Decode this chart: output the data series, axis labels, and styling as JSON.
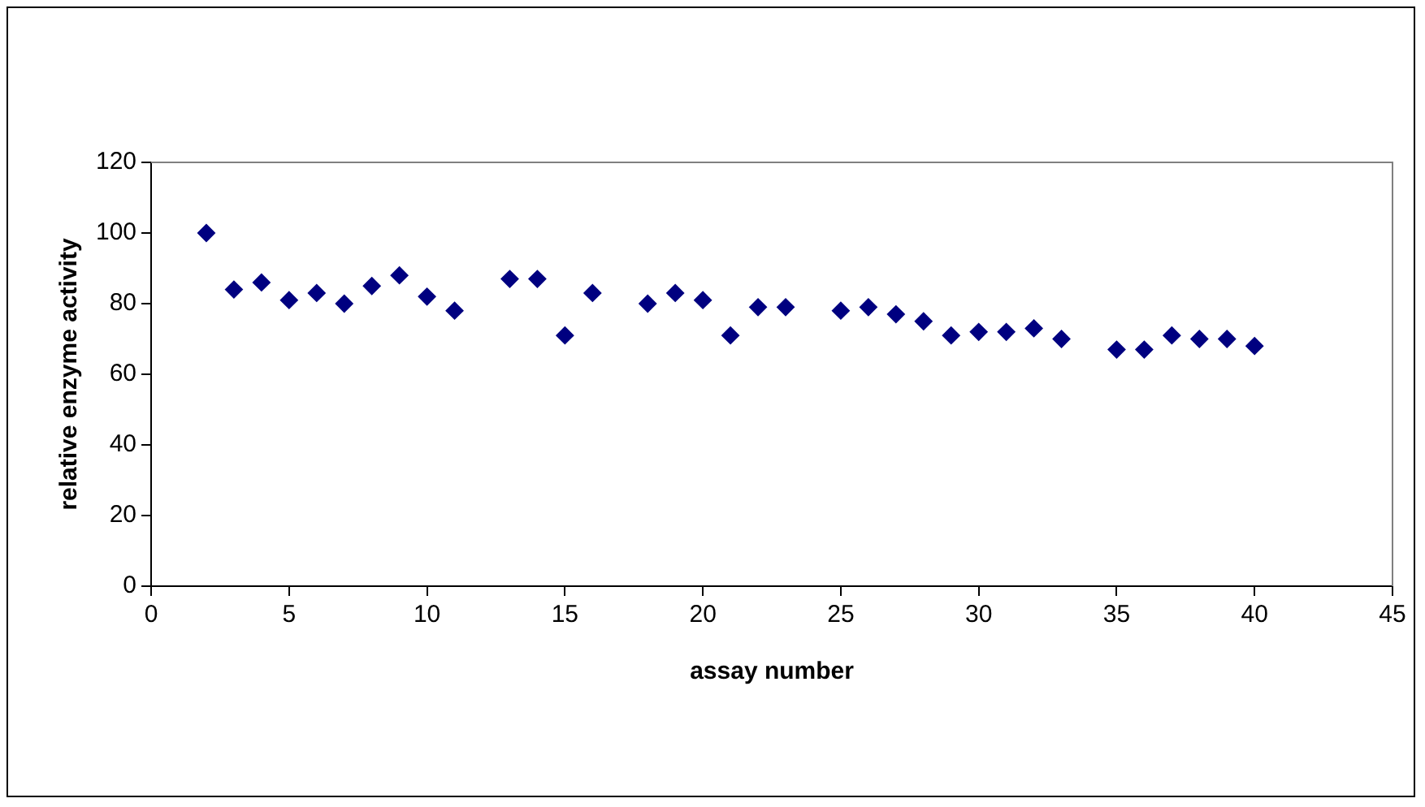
{
  "chart_data": {
    "type": "scatter",
    "xlabel": "assay number",
    "ylabel": "relative enzyme activity",
    "x": [
      2,
      3,
      4,
      5,
      6,
      7,
      8,
      9,
      10,
      11,
      13,
      14,
      15,
      16,
      18,
      19,
      20,
      21,
      22,
      23,
      25,
      26,
      27,
      28,
      29,
      30,
      31,
      32,
      33,
      35,
      36,
      37,
      38,
      39,
      40
    ],
    "values": [
      100,
      84,
      86,
      81,
      83,
      80,
      85,
      88,
      82,
      78,
      87,
      87,
      71,
      83,
      80,
      83,
      81,
      71,
      79,
      79,
      78,
      79,
      77,
      75,
      71,
      72,
      72,
      73,
      70,
      67,
      67,
      71,
      70,
      70,
      68
    ],
    "color": "#000080",
    "marker": "diamond",
    "xlim": [
      0,
      45
    ],
    "xticks": [
      0,
      5,
      10,
      15,
      20,
      25,
      30,
      35,
      40,
      45
    ],
    "ylim": [
      0,
      120
    ],
    "yticks": [
      0,
      20,
      40,
      60,
      80,
      100,
      120
    ],
    "grid": false,
    "legend": false
  }
}
